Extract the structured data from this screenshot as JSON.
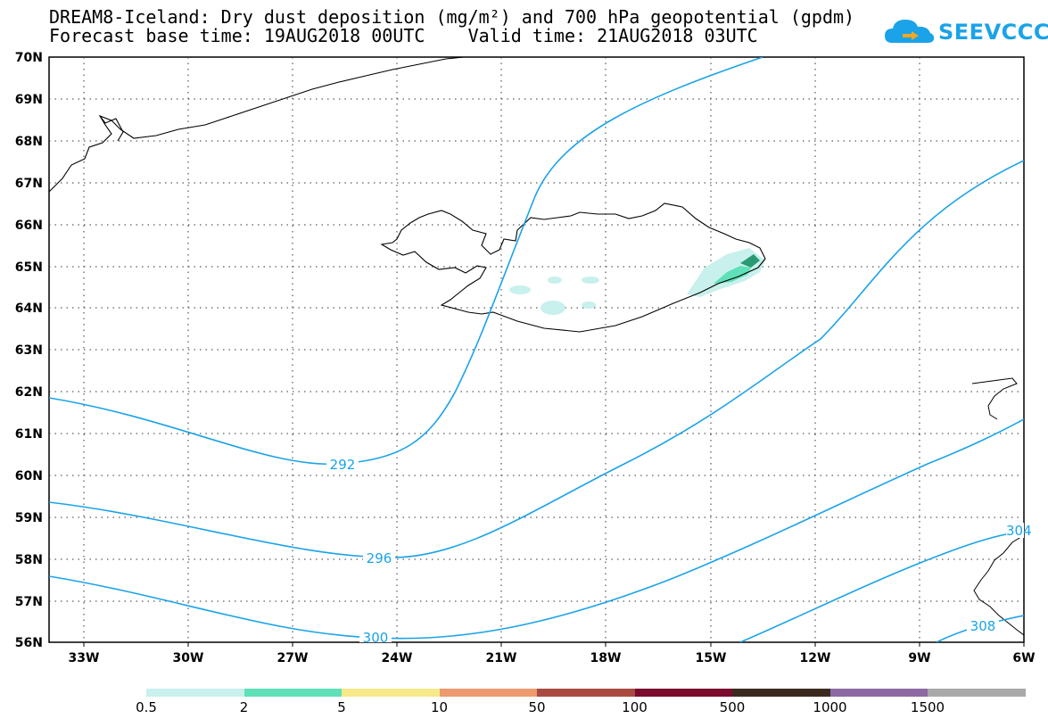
{
  "title": {
    "line1": "DREAM8-Iceland: Dry dust deposition (mg/m²) and 700 hPa geopotential (gpdm)",
    "line2": "Forecast base time: 19AUG2018 00UTC    Valid time: 21AUG2018 03UTC"
  },
  "logo": {
    "text": "SEEVCCC",
    "color": "#1aa3e8"
  },
  "map": {
    "lon_labels": [
      "33W",
      "30W",
      "27W",
      "24W",
      "21W",
      "18W",
      "15W",
      "12W",
      "9W",
      "6W"
    ],
    "lat_labels": [
      "70N",
      "69N",
      "68N",
      "67N",
      "66N",
      "65N",
      "64N",
      "63N",
      "62N",
      "61N",
      "60N",
      "59N",
      "58N",
      "57N",
      "56N"
    ],
    "contour_color": "#1aa3e8",
    "contour_labels": [
      "292",
      "296",
      "300",
      "304",
      "308"
    ]
  },
  "colorbar": {
    "labels": [
      "0.5",
      "2",
      "5",
      "10",
      "50",
      "100",
      "500",
      "1000",
      "1500"
    ],
    "colors": [
      "#c8f0ec",
      "#5fe0b8",
      "#f5e98a",
      "#ec9a6e",
      "#a94a42",
      "#7a0a2e",
      "#3a2a1e",
      "#8e6aa4",
      "#a9a9a9"
    ]
  }
}
